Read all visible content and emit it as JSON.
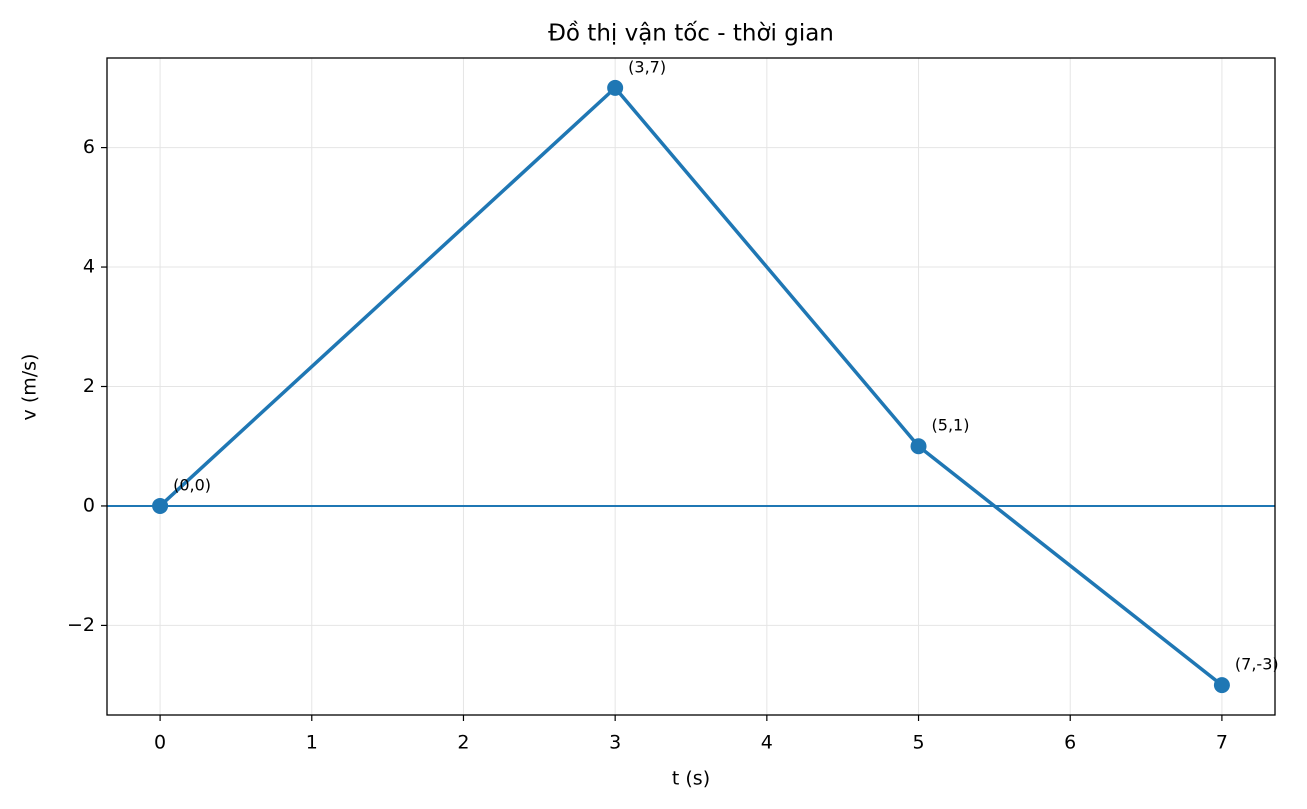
{
  "chart_data": {
    "type": "line",
    "title": "Đồ thị vận tốc - thời gian",
    "xlabel": "t (s)",
    "ylabel": "v (m/s)",
    "x": [
      0,
      3,
      5,
      7
    ],
    "values": [
      0,
      7,
      1,
      -3
    ],
    "value_labels": [
      "(0,0)",
      "(3,7)",
      "(5,1)",
      "(7,-3)"
    ],
    "color": "#1f77b4",
    "hline": 0,
    "xlim": [
      -0.35,
      7.35
    ],
    "ylim": [
      -3.5,
      7.5
    ],
    "xticks": [
      0,
      1,
      2,
      3,
      4,
      5,
      6,
      7
    ],
    "yticks": [
      {
        "value": -2,
        "label": "−2"
      },
      0,
      2,
      4,
      6
    ],
    "grid": true
  }
}
